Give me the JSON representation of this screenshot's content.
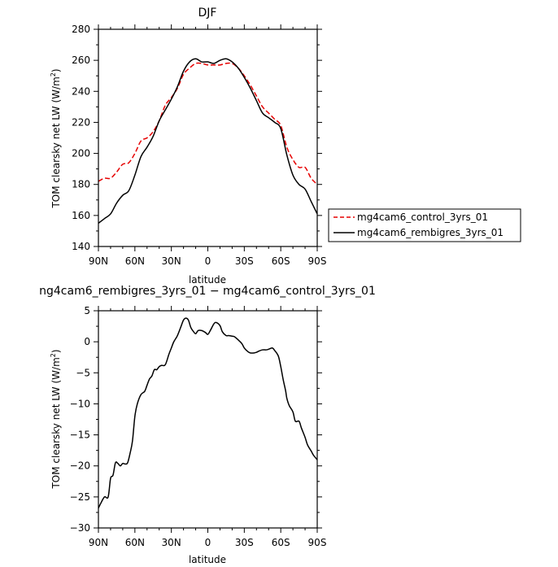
{
  "chart_data": [
    {
      "type": "line",
      "title": "DJF",
      "xlabel": "latitude",
      "ylabel": "TOM clearsky net LW (W/m",
      "ylabel_sup": "2",
      "ylabel_end": ")",
      "xlim": [
        -90,
        90
      ],
      "ylim": [
        140,
        280
      ],
      "x_ticks": [
        -90,
        -60,
        -30,
        0,
        30,
        60,
        90
      ],
      "x_tick_labels": [
        "90N",
        "60N",
        "30N",
        "0",
        "30S",
        "60S",
        "90S"
      ],
      "y_ticks": [
        140,
        160,
        180,
        200,
        220,
        240,
        260,
        280
      ],
      "y_tick_labels": [
        "140",
        "160",
        "180",
        "200",
        "220",
        "240",
        "260",
        "280"
      ],
      "grid": false,
      "legend_position": "right",
      "series": [
        {
          "name": "mg4cam6_control_3yrs_01",
          "color": "#e60000",
          "dash": "dashed",
          "x": [
            -90,
            -85,
            -80,
            -75,
            -70,
            -65,
            -60,
            -55,
            -50,
            -45,
            -40,
            -35,
            -30,
            -25,
            -20,
            -15,
            -10,
            -5,
            0,
            5,
            10,
            15,
            20,
            25,
            30,
            35,
            40,
            45,
            50,
            55,
            60,
            65,
            70,
            75,
            80,
            85,
            90
          ],
          "values": [
            182,
            184,
            184,
            188,
            193,
            194,
            200,
            208,
            210,
            214,
            221,
            231,
            236,
            242,
            251,
            255,
            258,
            258,
            257,
            257,
            257,
            258,
            258,
            255,
            250,
            244,
            237,
            230,
            226,
            222,
            218,
            204,
            196,
            191,
            191,
            184,
            180
          ]
        },
        {
          "name": "mg4cam6_rembigres_3yrs_01",
          "color": "#000000",
          "dash": "solid",
          "x": [
            -90,
            -85,
            -80,
            -75,
            -70,
            -65,
            -60,
            -55,
            -50,
            -45,
            -40,
            -35,
            -30,
            -25,
            -20,
            -15,
            -10,
            -5,
            0,
            5,
            10,
            15,
            20,
            25,
            30,
            35,
            40,
            45,
            50,
            55,
            60,
            65,
            70,
            75,
            80,
            85,
            90
          ],
          "values": [
            155,
            158,
            161,
            168,
            173,
            176,
            186,
            198,
            204,
            211,
            221,
            228,
            235,
            243,
            253,
            259,
            261,
            259,
            259,
            258,
            260,
            261,
            259,
            255,
            249,
            242,
            234,
            226,
            223,
            220,
            216,
            199,
            186,
            180,
            177,
            169,
            161
          ]
        }
      ]
    },
    {
      "type": "line",
      "title": "ng4cam6_rembigres_3yrs_01 − mg4cam6_control_3yrs_01",
      "xlabel": "latitude",
      "ylabel": "TOM clearsky net LW (W/m",
      "ylabel_sup": "2",
      "ylabel_end": ")",
      "xlim": [
        -90,
        90
      ],
      "ylim": [
        -30,
        5
      ],
      "x_ticks": [
        -90,
        -60,
        -30,
        0,
        30,
        60,
        90
      ],
      "x_tick_labels": [
        "90N",
        "60N",
        "30N",
        "0",
        "30S",
        "60S",
        "90S"
      ],
      "y_ticks": [
        -30,
        -25,
        -20,
        -15,
        -10,
        -5,
        0,
        5
      ],
      "y_tick_labels": [
        "−30",
        "−25",
        "−20",
        "−15",
        "−10",
        "−5",
        "0",
        "5"
      ],
      "grid": false,
      "series": [
        {
          "color": "#000000",
          "dash": "solid",
          "x": [
            -90,
            -88,
            -85,
            -82,
            -80,
            -78,
            -76,
            -74,
            -72,
            -70,
            -68,
            -66,
            -64,
            -62,
            -60,
            -58,
            -55,
            -52,
            -50,
            -48,
            -46,
            -44,
            -42,
            -40,
            -38,
            -35,
            -32,
            -30,
            -28,
            -25,
            -22,
            -20,
            -18,
            -16,
            -14,
            -12,
            -10,
            -8,
            -5,
            -2,
            0,
            2,
            5,
            7,
            10,
            12,
            15,
            17,
            20,
            22,
            25,
            28,
            30,
            33,
            35,
            38,
            40,
            42,
            45,
            48,
            50,
            53,
            55,
            58,
            60,
            62,
            64,
            65,
            67,
            70,
            72,
            75,
            77,
            80,
            82,
            85,
            87,
            90
          ],
          "values": [
            -26.8,
            -26,
            -25,
            -25,
            -22,
            -21.5,
            -19.5,
            -19.6,
            -20,
            -19.6,
            -19.7,
            -19.5,
            -18,
            -16,
            -12,
            -10,
            -8.5,
            -8,
            -7,
            -6,
            -5.5,
            -4.5,
            -4.5,
            -4,
            -3.8,
            -3.7,
            -2,
            -1,
            0,
            1,
            2.5,
            3.5,
            3.8,
            3.5,
            2.3,
            1.7,
            1.3,
            1.8,
            1.8,
            1.5,
            1.2,
            1.8,
            2.9,
            3.1,
            2.6,
            1.6,
            1.0,
            1.0,
            0.9,
            0.8,
            0.3,
            -0.3,
            -1.0,
            -1.6,
            -1.8,
            -1.8,
            -1.7,
            -1.5,
            -1.3,
            -1.3,
            -1.2,
            -1.0,
            -1.4,
            -2.3,
            -4.0,
            -6.1,
            -7.9,
            -9.1,
            -10.3,
            -11.3,
            -12.8,
            -12.8,
            -13.9,
            -15.4,
            -16.6,
            -17.6,
            -18.3,
            -19
          ]
        }
      ]
    }
  ]
}
